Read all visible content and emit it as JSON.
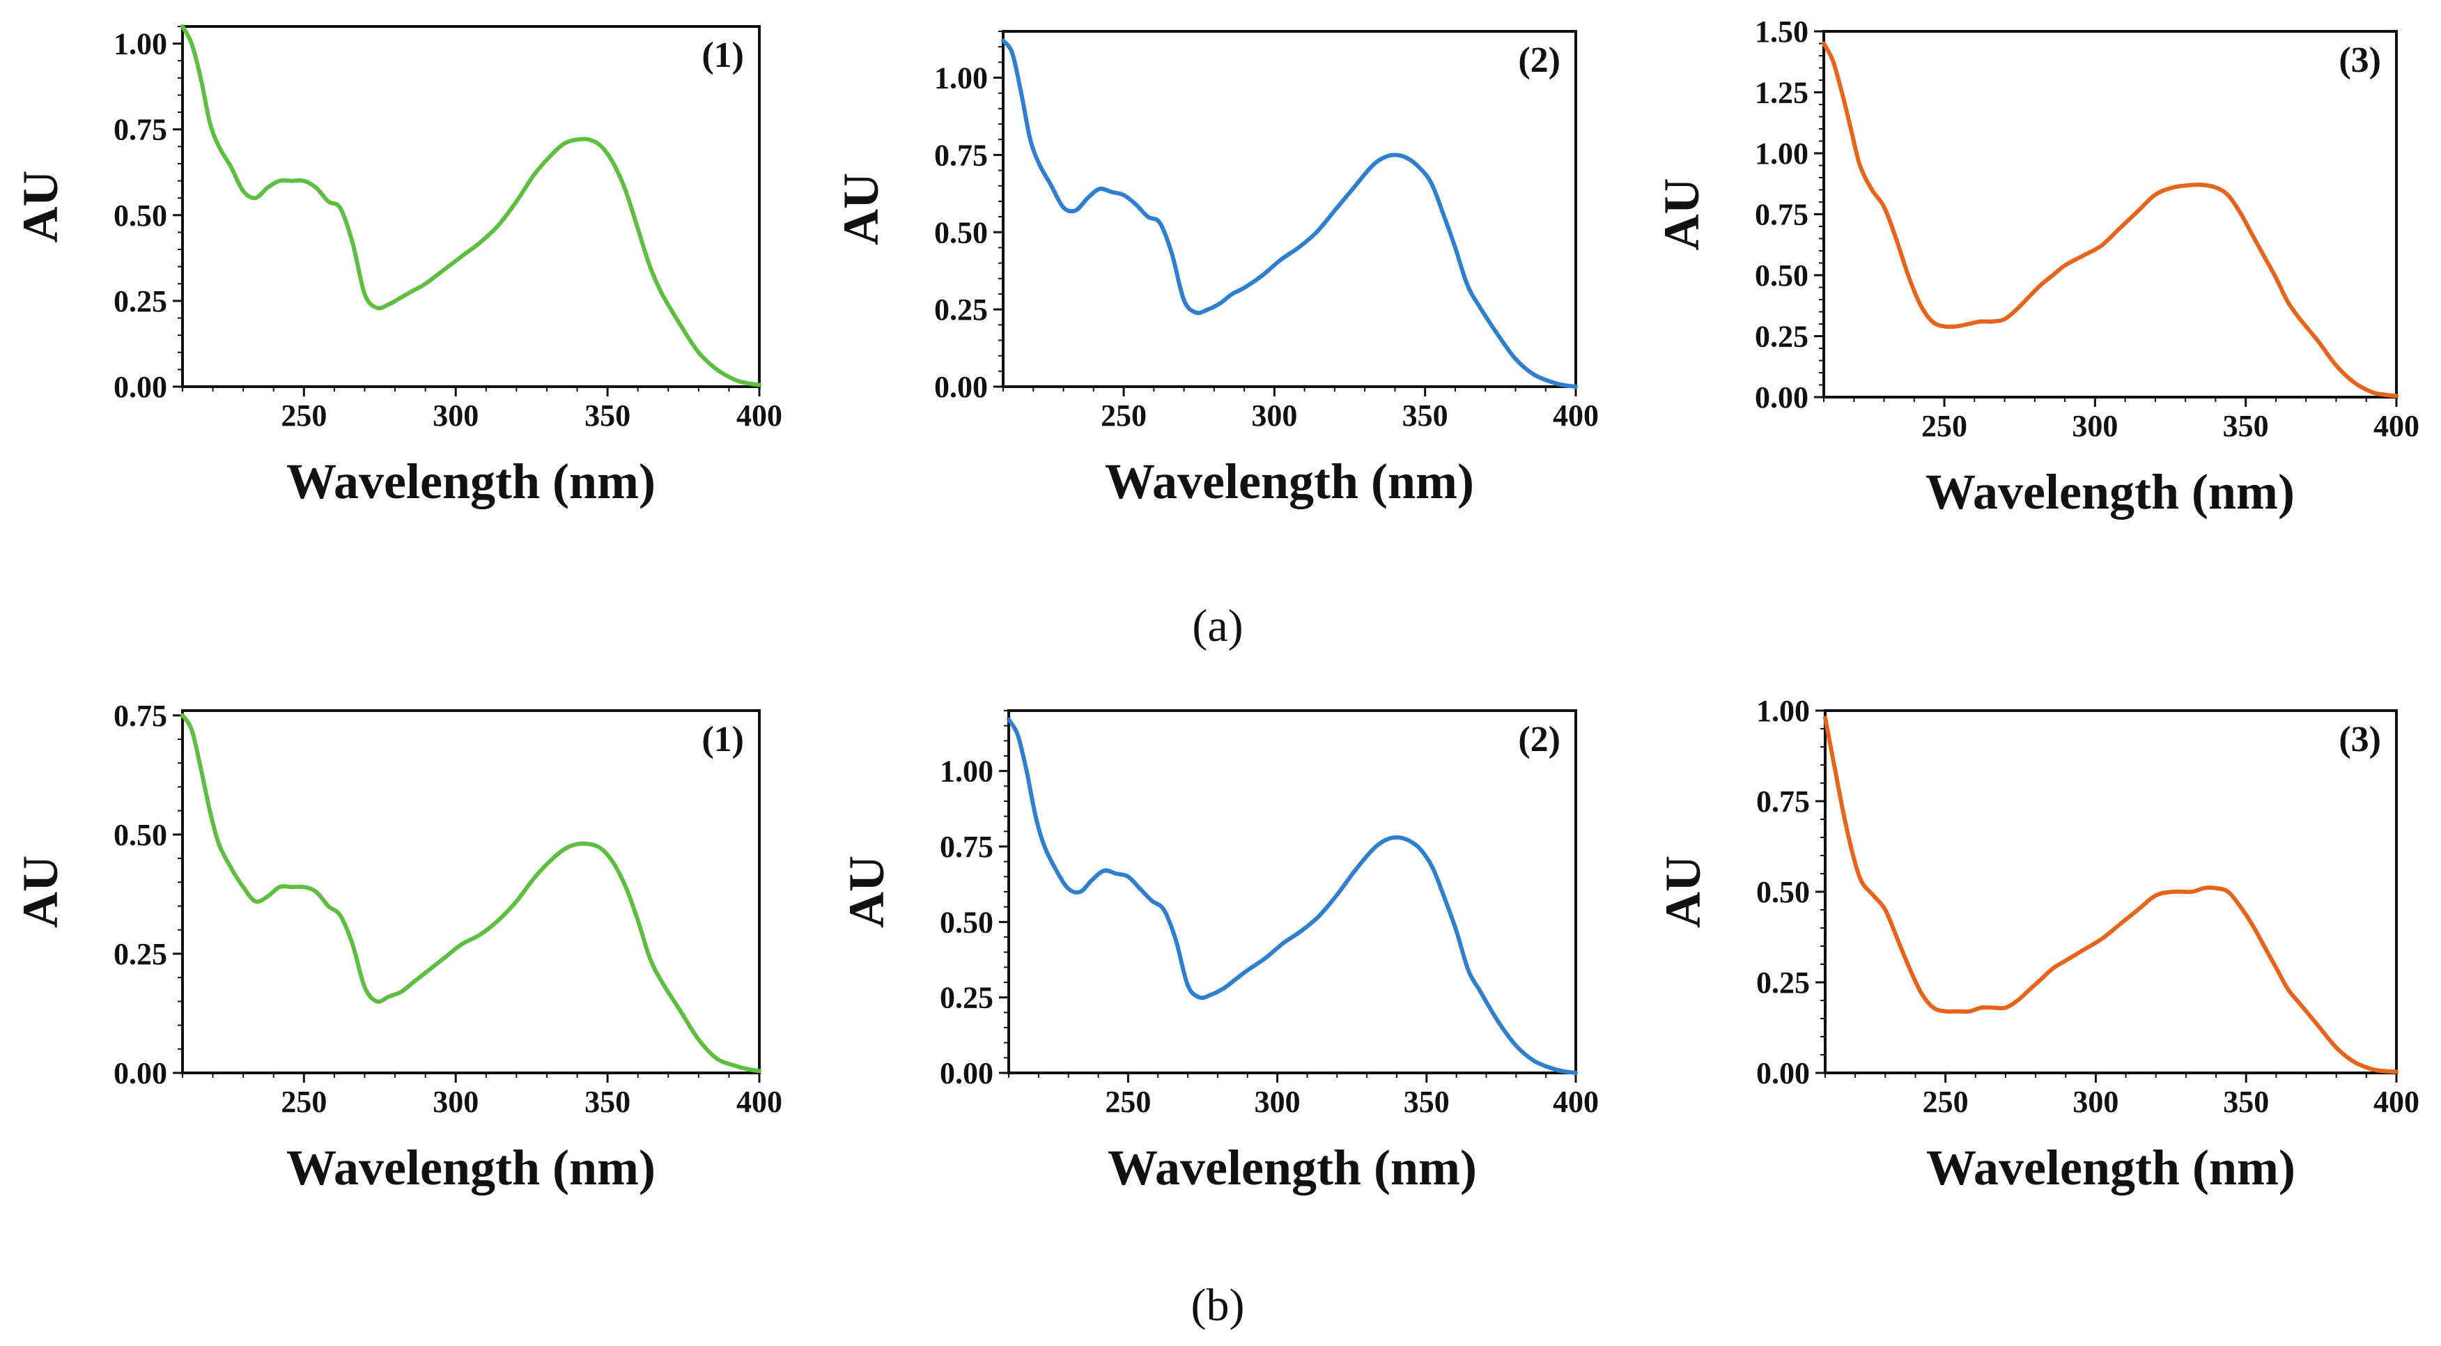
{
  "figure_labels": [
    "(a)",
    "(b)"
  ],
  "chart_data": [
    {
      "type": "line",
      "row": "(a)",
      "panel_label": "(1)",
      "color": "#5cbf3f",
      "xlabel": "Wavelength (nm)",
      "ylabel": "AU",
      "xlim": [
        210,
        400
      ],
      "ylim": [
        0,
        1.05
      ],
      "xticks": [
        250,
        300,
        350,
        400
      ],
      "yticks": [
        0.0,
        0.25,
        0.5,
        0.75,
        1.0
      ],
      "xtick_labels": [
        "250",
        "300",
        "350",
        "400"
      ],
      "ytick_labels": [
        "0.00",
        "0.25",
        "0.50",
        "0.75",
        "1.00"
      ],
      "x": [
        210,
        213,
        216,
        219,
        222,
        226,
        230,
        234,
        238,
        242,
        246,
        250,
        254,
        258,
        262,
        266,
        270,
        274,
        278,
        282,
        286,
        290,
        296,
        302,
        308,
        314,
        320,
        326,
        332,
        336,
        340,
        344,
        348,
        352,
        356,
        360,
        364,
        368,
        374,
        380,
        386,
        392,
        396,
        400
      ],
      "y": [
        1.05,
        1.0,
        0.9,
        0.77,
        0.7,
        0.64,
        0.57,
        0.55,
        0.58,
        0.6,
        0.6,
        0.6,
        0.58,
        0.54,
        0.52,
        0.42,
        0.27,
        0.23,
        0.24,
        0.26,
        0.28,
        0.3,
        0.34,
        0.38,
        0.42,
        0.47,
        0.54,
        0.62,
        0.68,
        0.71,
        0.72,
        0.72,
        0.7,
        0.65,
        0.57,
        0.46,
        0.35,
        0.27,
        0.18,
        0.1,
        0.05,
        0.02,
        0.01,
        0.005
      ]
    },
    {
      "type": "line",
      "row": "(a)",
      "panel_label": "(2)",
      "color": "#2f7fd0",
      "xlabel": "Wavelength (nm)",
      "ylabel": "AU",
      "xlim": [
        210,
        400
      ],
      "ylim": [
        0,
        1.15
      ],
      "xticks": [
        250,
        300,
        350,
        400
      ],
      "yticks": [
        0.0,
        0.25,
        0.5,
        0.75,
        1.0
      ],
      "xtick_labels": [
        "250",
        "300",
        "350",
        "400"
      ],
      "ytick_labels": [
        "0.00",
        "0.25",
        "0.50",
        "0.75",
        "1.00"
      ],
      "x": [
        210,
        213,
        216,
        219,
        222,
        226,
        230,
        234,
        238,
        242,
        246,
        250,
        254,
        258,
        262,
        266,
        270,
        274,
        278,
        282,
        286,
        290,
        296,
        302,
        308,
        314,
        320,
        326,
        332,
        336,
        340,
        344,
        348,
        352,
        356,
        360,
        364,
        368,
        374,
        380,
        386,
        392,
        396,
        400
      ],
      "y": [
        1.12,
        1.08,
        0.95,
        0.8,
        0.72,
        0.65,
        0.58,
        0.57,
        0.61,
        0.64,
        0.63,
        0.62,
        0.59,
        0.55,
        0.53,
        0.43,
        0.28,
        0.24,
        0.25,
        0.27,
        0.3,
        0.32,
        0.36,
        0.41,
        0.45,
        0.5,
        0.57,
        0.64,
        0.71,
        0.74,
        0.75,
        0.74,
        0.71,
        0.66,
        0.56,
        0.45,
        0.33,
        0.26,
        0.17,
        0.09,
        0.04,
        0.015,
        0.005,
        0.0
      ]
    },
    {
      "type": "line",
      "row": "(a)",
      "panel_label": "(3)",
      "color": "#e8641b",
      "xlabel": "Wavelength (nm)",
      "ylabel": "AU",
      "xlim": [
        210,
        400
      ],
      "ylim": [
        0,
        1.5
      ],
      "xticks": [
        250,
        300,
        350,
        400
      ],
      "yticks": [
        0.0,
        0.25,
        0.5,
        0.75,
        1.0,
        1.25,
        1.5
      ],
      "xtick_labels": [
        "250",
        "300",
        "350",
        "400"
      ],
      "ytick_labels": [
        "0.00",
        "0.25",
        "0.50",
        "0.75",
        "1.00",
        "1.25",
        "1.50"
      ],
      "x": [
        210,
        213,
        216,
        219,
        222,
        226,
        230,
        234,
        238,
        242,
        246,
        250,
        254,
        258,
        262,
        266,
        270,
        274,
        278,
        282,
        286,
        290,
        296,
        302,
        308,
        314,
        320,
        326,
        332,
        336,
        340,
        344,
        348,
        352,
        356,
        360,
        364,
        368,
        374,
        380,
        386,
        392,
        396,
        400
      ],
      "y": [
        1.45,
        1.38,
        1.25,
        1.1,
        0.95,
        0.85,
        0.78,
        0.65,
        0.5,
        0.38,
        0.31,
        0.29,
        0.29,
        0.3,
        0.31,
        0.31,
        0.32,
        0.36,
        0.41,
        0.46,
        0.5,
        0.54,
        0.58,
        0.62,
        0.69,
        0.76,
        0.83,
        0.86,
        0.87,
        0.87,
        0.86,
        0.83,
        0.76,
        0.67,
        0.58,
        0.49,
        0.39,
        0.32,
        0.23,
        0.13,
        0.06,
        0.02,
        0.01,
        0.005
      ]
    },
    {
      "type": "line",
      "row": "(b)",
      "panel_label": "(1)",
      "color": "#5cbf3f",
      "xlabel": "Wavelength (nm)",
      "ylabel": "AU",
      "xlim": [
        210,
        400
      ],
      "ylim": [
        0,
        0.76
      ],
      "xticks": [
        250,
        300,
        350,
        400
      ],
      "yticks": [
        0.0,
        0.25,
        0.5,
        0.75
      ],
      "xtick_labels": [
        "250",
        "300",
        "350",
        "400"
      ],
      "ytick_labels": [
        "0.00",
        "0.25",
        "0.50",
        "0.75"
      ],
      "x": [
        210,
        213,
        216,
        219,
        222,
        226,
        230,
        234,
        238,
        242,
        246,
        250,
        254,
        258,
        262,
        266,
        270,
        274,
        278,
        282,
        286,
        290,
        296,
        302,
        308,
        314,
        320,
        326,
        332,
        336,
        340,
        344,
        348,
        352,
        356,
        360,
        364,
        368,
        374,
        380,
        386,
        392,
        396,
        400
      ],
      "y": [
        0.75,
        0.72,
        0.64,
        0.55,
        0.48,
        0.43,
        0.39,
        0.36,
        0.37,
        0.39,
        0.39,
        0.39,
        0.38,
        0.35,
        0.33,
        0.27,
        0.18,
        0.15,
        0.16,
        0.17,
        0.19,
        0.21,
        0.24,
        0.27,
        0.29,
        0.32,
        0.36,
        0.41,
        0.45,
        0.47,
        0.48,
        0.48,
        0.47,
        0.44,
        0.39,
        0.32,
        0.24,
        0.19,
        0.13,
        0.07,
        0.03,
        0.015,
        0.008,
        0.004
      ]
    },
    {
      "type": "line",
      "row": "(b)",
      "panel_label": "(2)",
      "color": "#2f7fd0",
      "xlabel": "Wavelength (nm)",
      "ylabel": "AU",
      "xlim": [
        210,
        400
      ],
      "ylim": [
        0,
        1.2
      ],
      "xticks": [
        250,
        300,
        350,
        400
      ],
      "yticks": [
        0.0,
        0.25,
        0.5,
        0.75,
        1.0
      ],
      "xtick_labels": [
        "250",
        "300",
        "350",
        "400"
      ],
      "ytick_labels": [
        "0.00",
        "0.25",
        "0.50",
        "0.75",
        "1.00"
      ],
      "x": [
        210,
        213,
        216,
        219,
        222,
        226,
        230,
        234,
        238,
        242,
        246,
        250,
        254,
        258,
        262,
        266,
        270,
        274,
        278,
        282,
        286,
        290,
        296,
        302,
        308,
        314,
        320,
        326,
        332,
        336,
        340,
        344,
        348,
        352,
        356,
        360,
        364,
        368,
        374,
        380,
        386,
        392,
        396,
        400
      ],
      "y": [
        1.17,
        1.12,
        1.0,
        0.85,
        0.75,
        0.67,
        0.61,
        0.6,
        0.64,
        0.67,
        0.66,
        0.65,
        0.61,
        0.57,
        0.54,
        0.44,
        0.29,
        0.25,
        0.26,
        0.28,
        0.31,
        0.34,
        0.38,
        0.43,
        0.47,
        0.52,
        0.59,
        0.67,
        0.74,
        0.77,
        0.78,
        0.77,
        0.74,
        0.68,
        0.58,
        0.47,
        0.34,
        0.27,
        0.17,
        0.09,
        0.04,
        0.015,
        0.005,
        0.0
      ]
    },
    {
      "type": "line",
      "row": "(b)",
      "panel_label": "(3)",
      "color": "#e8641b",
      "xlabel": "Wavelength (nm)",
      "ylabel": "AU",
      "xlim": [
        210,
        400
      ],
      "ylim": [
        0,
        1.0
      ],
      "xticks": [
        250,
        300,
        350,
        400
      ],
      "yticks": [
        0.0,
        0.25,
        0.5,
        0.75,
        1.0
      ],
      "xtick_labels": [
        "250",
        "300",
        "350",
        "400"
      ],
      "ytick_labels": [
        "0.00",
        "0.25",
        "0.50",
        "0.75",
        "1.00"
      ],
      "x": [
        210,
        213,
        216,
        219,
        222,
        226,
        230,
        234,
        238,
        242,
        246,
        250,
        254,
        258,
        262,
        266,
        270,
        274,
        278,
        282,
        286,
        290,
        296,
        302,
        308,
        314,
        320,
        326,
        332,
        336,
        340,
        344,
        348,
        352,
        356,
        360,
        364,
        368,
        374,
        380,
        386,
        392,
        396,
        400
      ],
      "y": [
        0.98,
        0.85,
        0.72,
        0.61,
        0.53,
        0.49,
        0.45,
        0.37,
        0.29,
        0.22,
        0.18,
        0.17,
        0.17,
        0.17,
        0.18,
        0.18,
        0.18,
        0.2,
        0.23,
        0.26,
        0.29,
        0.31,
        0.34,
        0.37,
        0.41,
        0.45,
        0.49,
        0.5,
        0.5,
        0.51,
        0.51,
        0.5,
        0.46,
        0.41,
        0.35,
        0.29,
        0.23,
        0.19,
        0.13,
        0.07,
        0.03,
        0.01,
        0.005,
        0.003
      ]
    }
  ]
}
